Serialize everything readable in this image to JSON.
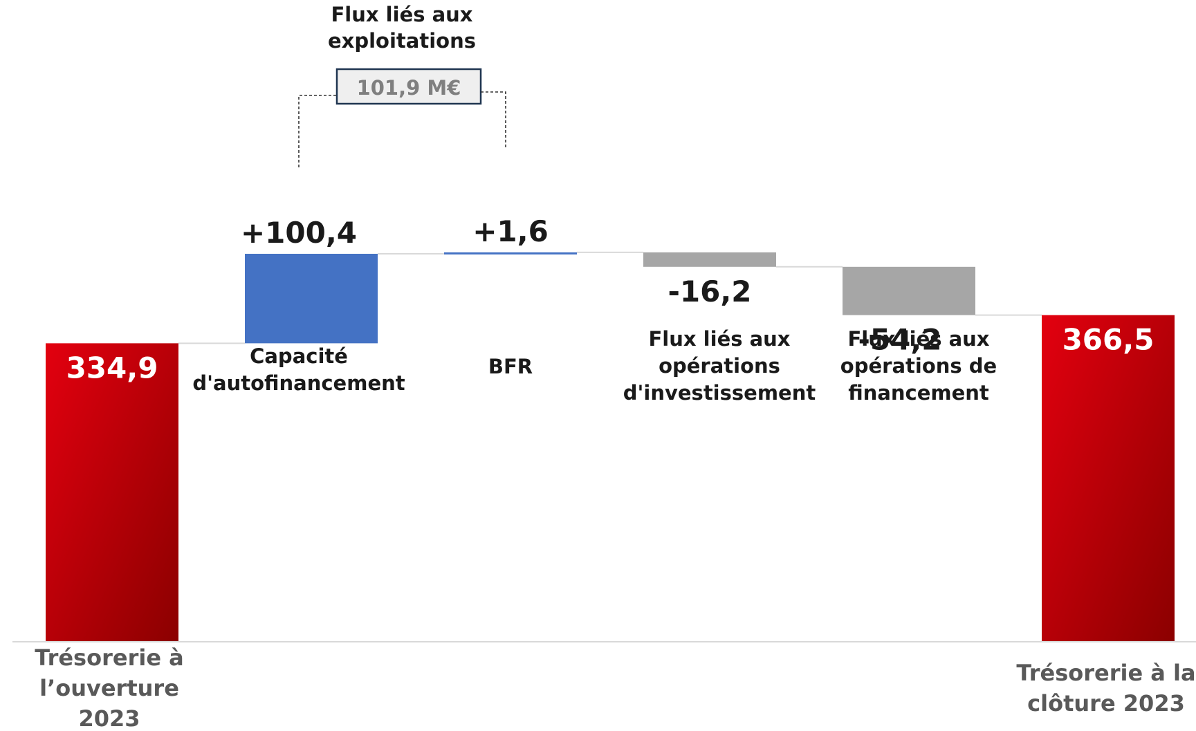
{
  "chart_data": {
    "type": "waterfall",
    "categories": [
      "Trésorerie à l’ouverture 2023",
      "Capacité d'autofinancement",
      "BFR",
      "Flux liés aux opérations d'investissement",
      "Flux liés aux opérations de financement",
      "Trésorerie à la clôture 2023"
    ],
    "values": [
      334.9,
      100.4,
      1.6,
      -16.2,
      -54.2,
      366.5
    ],
    "value_labels": [
      "334,9",
      "+100,4",
      "+1,6",
      "-16,2",
      "-54,2",
      "366,5"
    ],
    "kinds": [
      "total",
      "increase",
      "increase",
      "decrease",
      "decrease",
      "total"
    ],
    "category_lines": [
      [
        "Trésorerie à",
        "l’ouverture",
        "2023"
      ],
      [
        "Capacité",
        "d'autofinancement"
      ],
      [
        "BFR"
      ],
      [
        "Flux liés aux",
        "opérations",
        "d'investissement"
      ],
      [
        "Flux liés aux",
        "opérations de",
        "financement"
      ],
      [
        "Trésorerie à la",
        "clôture 2023"
      ]
    ],
    "ylim": [
      0,
      480
    ],
    "grid": false,
    "colors": {
      "total": "#e3000f",
      "total_dark": "#8b0000",
      "increase": "#4472c4",
      "decrease": "#a6a6a6",
      "connector": "#d9d9d9",
      "axis_text": "#595959"
    },
    "group": {
      "title_lines": [
        "Flux liés aux",
        "exploitations"
      ],
      "total_label": "101,9 M€",
      "spans": [
        1,
        2
      ]
    }
  }
}
